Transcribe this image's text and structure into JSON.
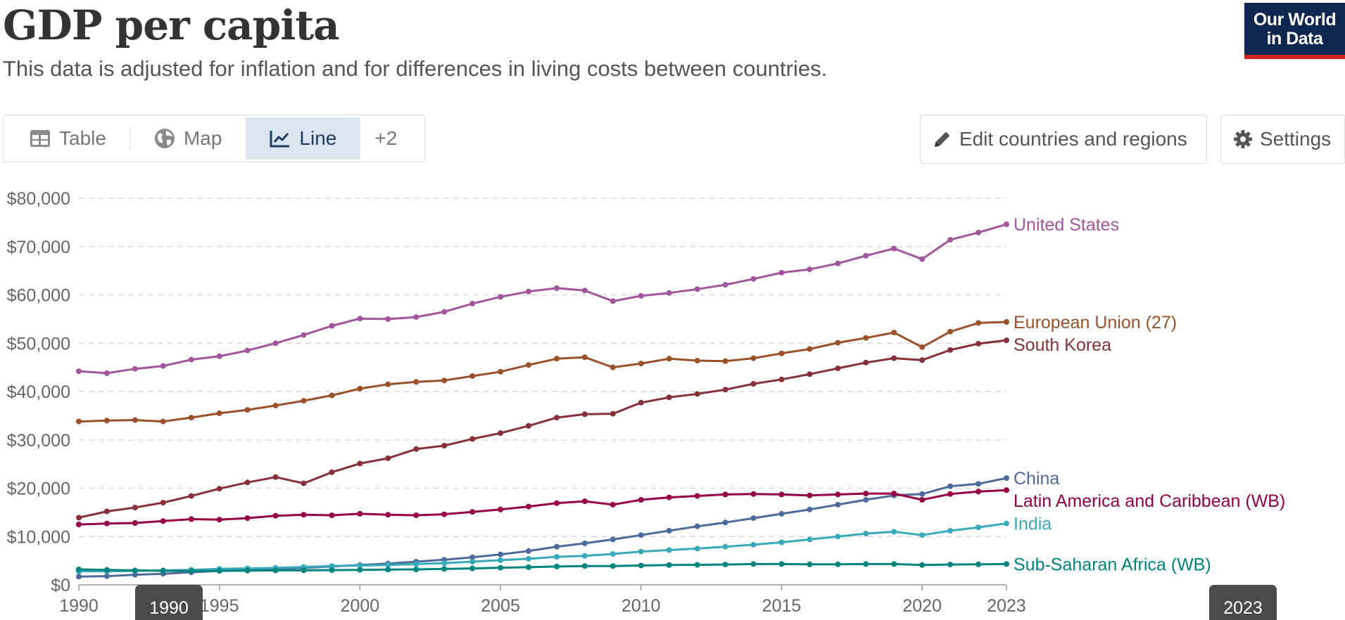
{
  "header": {
    "title": "GDP per capita",
    "subtitle": "This data is adjusted for inflation and for differences in living costs between countries."
  },
  "logo": {
    "line1": "Our World",
    "line2": "in Data"
  },
  "tabs": [
    {
      "label": "Table",
      "icon": "table-icon",
      "active": false
    },
    {
      "label": "Map",
      "icon": "globe-icon",
      "active": false
    },
    {
      "label": "Line",
      "icon": "line-chart-icon",
      "active": true
    },
    {
      "label": "+2",
      "active": false
    }
  ],
  "controls": {
    "edit_label": "Edit countries and regions",
    "settings_label": "Settings"
  },
  "timeline": {
    "start_label": "1990",
    "end_label": "2023"
  },
  "chart_data": {
    "type": "line",
    "ylim": [
      0,
      80000
    ],
    "xlim": [
      1990,
      2023
    ],
    "y_ticks": [
      {
        "value": 0,
        "label": "$0"
      },
      {
        "value": 10000,
        "label": "$10,000"
      },
      {
        "value": 20000,
        "label": "$20,000"
      },
      {
        "value": 30000,
        "label": "$30,000"
      },
      {
        "value": 40000,
        "label": "$40,000"
      },
      {
        "value": 50000,
        "label": "$50,000"
      },
      {
        "value": 60000,
        "label": "$60,000"
      },
      {
        "value": 70000,
        "label": "$70,000"
      },
      {
        "value": 80000,
        "label": "$80,000"
      }
    ],
    "x_ticks": [
      {
        "value": 1990,
        "label": "1990"
      },
      {
        "value": 1995,
        "label": "1995"
      },
      {
        "value": 2000,
        "label": "2000"
      },
      {
        "value": 2005,
        "label": "2005"
      },
      {
        "value": 2010,
        "label": "2010"
      },
      {
        "value": 2015,
        "label": "2015"
      },
      {
        "value": 2020,
        "label": "2020"
      },
      {
        "value": 2023,
        "label": "2023"
      }
    ],
    "grid": true,
    "legend": "right-end-labels",
    "x": [
      1990,
      1991,
      1992,
      1993,
      1994,
      1995,
      1996,
      1997,
      1998,
      1999,
      2000,
      2001,
      2002,
      2003,
      2004,
      2005,
      2006,
      2007,
      2008,
      2009,
      2010,
      2011,
      2012,
      2013,
      2014,
      2015,
      2016,
      2017,
      2018,
      2019,
      2020,
      2021,
      2022,
      2023
    ],
    "series": [
      {
        "name": "United States",
        "color": "#a2559c",
        "values": [
          44200,
          43800,
          44700,
          45300,
          46600,
          47300,
          48500,
          50000,
          51700,
          53600,
          55100,
          55000,
          55400,
          56500,
          58200,
          59600,
          60700,
          61400,
          60900,
          58700,
          59800,
          60400,
          61200,
          62100,
          63300,
          64600,
          65300,
          66500,
          68100,
          69600,
          67400,
          71400,
          72900,
          74600
        ]
      },
      {
        "name": "European Union (27)",
        "color": "#9a5129",
        "values": [
          33800,
          34000,
          34100,
          33800,
          34600,
          35500,
          36200,
          37100,
          38100,
          39200,
          40600,
          41500,
          42000,
          42300,
          43200,
          44100,
          45500,
          46800,
          47100,
          45000,
          45800,
          46800,
          46400,
          46300,
          46900,
          47900,
          48800,
          50100,
          51100,
          52200,
          49200,
          52400,
          54200,
          54400
        ]
      },
      {
        "name": "South Korea",
        "color": "#883039",
        "values": [
          13900,
          15200,
          16000,
          17000,
          18400,
          19900,
          21200,
          22300,
          21000,
          23300,
          25100,
          26200,
          28100,
          28800,
          30200,
          31400,
          32900,
          34600,
          35300,
          35400,
          37700,
          38800,
          39500,
          40400,
          41600,
          42500,
          43600,
          44800,
          46000,
          46900,
          46500,
          48600,
          49900,
          50600
        ]
      },
      {
        "name": "China",
        "color": "#4c6a9c",
        "values": [
          1700,
          1800,
          2100,
          2300,
          2600,
          2900,
          3100,
          3300,
          3500,
          3800,
          4100,
          4400,
          4800,
          5200,
          5700,
          6300,
          7000,
          7900,
          8600,
          9400,
          10300,
          11200,
          12100,
          12900,
          13800,
          14700,
          15600,
          16600,
          17600,
          18500,
          18800,
          20400,
          20900,
          22100
        ]
      },
      {
        "name": "Latin America and Caribbean (WB)",
        "color": "#970046",
        "values": [
          12500,
          12700,
          12800,
          13200,
          13600,
          13500,
          13800,
          14300,
          14500,
          14400,
          14700,
          14500,
          14400,
          14600,
          15100,
          15600,
          16200,
          16900,
          17300,
          16600,
          17600,
          18100,
          18400,
          18700,
          18800,
          18700,
          18500,
          18700,
          18900,
          18900,
          17600,
          18800,
          19300,
          19600
        ]
      },
      {
        "name": "India",
        "color": "#38aaba",
        "values": [
          2800,
          2800,
          2900,
          3000,
          3100,
          3300,
          3400,
          3500,
          3700,
          3900,
          4000,
          4100,
          4300,
          4500,
          4800,
          5100,
          5400,
          5800,
          6000,
          6400,
          6900,
          7200,
          7500,
          7900,
          8300,
          8800,
          9400,
          10000,
          10600,
          11000,
          10300,
          11200,
          11900,
          12700
        ]
      },
      {
        "name": "Sub-Saharan Africa (WB)",
        "color": "#00847e",
        "values": [
          3200,
          3100,
          3000,
          2900,
          2900,
          2900,
          2950,
          3000,
          3000,
          3050,
          3100,
          3150,
          3200,
          3300,
          3400,
          3550,
          3650,
          3800,
          3900,
          3900,
          4000,
          4100,
          4150,
          4200,
          4300,
          4300,
          4250,
          4250,
          4300,
          4300,
          4100,
          4200,
          4250,
          4300
        ]
      }
    ],
    "label_offsets_note": ""
  }
}
